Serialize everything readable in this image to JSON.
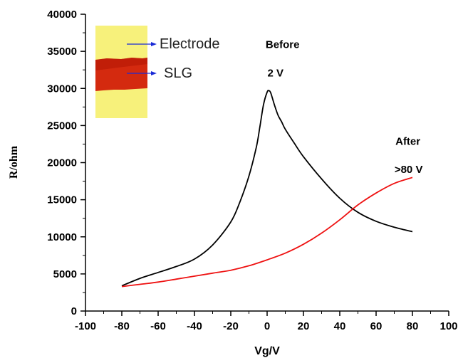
{
  "chart_data": {
    "type": "line",
    "xlabel": "Vg/V",
    "ylabel": "R/ohm",
    "xlim": [
      -100,
      100
    ],
    "ylim": [
      0,
      40000
    ],
    "x_ticks": [
      "-100",
      "-80",
      "-60",
      "-40",
      "-20",
      "0",
      "20",
      "40",
      "60",
      "80",
      "100"
    ],
    "y_ticks": [
      "0",
      "5000",
      "10000",
      "15000",
      "20000",
      "25000",
      "30000",
      "35000",
      "40000"
    ],
    "grid": false,
    "series": [
      {
        "color": "#000000",
        "x": [
          -80,
          -70,
          -60,
          -50,
          -40,
          -30,
          -20,
          -15,
          -10,
          -6,
          -4,
          -2,
          0,
          1,
          2,
          4,
          6,
          8,
          10,
          15,
          20,
          30,
          40,
          50,
          60,
          70,
          80
        ],
        "y": [
          3400,
          4400,
          5200,
          6000,
          7000,
          8900,
          12000,
          14700,
          18200,
          22000,
          24800,
          27800,
          29500,
          29700,
          29400,
          27800,
          26400,
          25500,
          24500,
          22600,
          20800,
          17800,
          15200,
          13300,
          12100,
          11300,
          10700
        ]
      },
      {
        "color": "#ee1111",
        "x": [
          -80,
          -70,
          -60,
          -50,
          -40,
          -30,
          -20,
          -10,
          0,
          10,
          20,
          30,
          40,
          50,
          60,
          70,
          80
        ],
        "y": [
          3300,
          3600,
          3900,
          4300,
          4700,
          5100,
          5500,
          6100,
          6900,
          7800,
          9000,
          10500,
          12300,
          14300,
          15900,
          17200,
          18000
        ]
      }
    ],
    "annotations": [
      {
        "text": "Before",
        "x": 8.5,
        "y": 35900
      },
      {
        "text": "2 V",
        "x": 4.6,
        "y": 32100
      },
      {
        "text": "After",
        "x": 77.5,
        "y": 22900
      },
      {
        "text": ">80 V",
        "x": 77.9,
        "y": 19100
      }
    ],
    "inset": {
      "labels": [
        "Electrode",
        "SLG"
      ],
      "colors": {
        "electrode": "#f7f17b",
        "slg": "#d42a0f",
        "slg_dark": "#b01404",
        "arrow": "#1a2bd6"
      }
    }
  }
}
